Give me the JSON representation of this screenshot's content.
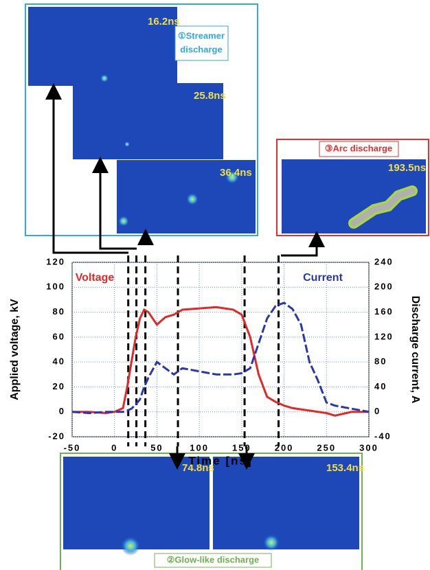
{
  "panels": {
    "streamer": {
      "title": [
        "①Streamer",
        "discharge"
      ],
      "images": [
        "16.2ns",
        "25.8ns",
        "36.4ns"
      ]
    },
    "arc": {
      "title": "③Arc discharge",
      "images": [
        "193.5ns"
      ]
    },
    "glow": {
      "title": "②Glow-like discharge",
      "images": [
        "74.8ns",
        "153.4ns"
      ]
    }
  },
  "chart_data": {
    "type": "line",
    "xlabel": "Time [ns]",
    "ylabel": "Applied voltage, kV",
    "y2label": "Discharge current, A",
    "x": [
      -50,
      -30,
      -10,
      0,
      10,
      15,
      20,
      25,
      30,
      35,
      40,
      50,
      60,
      70,
      80,
      100,
      120,
      140,
      150,
      160,
      170,
      180,
      190,
      200,
      210,
      220,
      230,
      240,
      250,
      260,
      280,
      300
    ],
    "series": [
      {
        "name": "Voltage",
        "color": "#e02828",
        "values": [
          0,
          0,
          -1,
          0,
          3,
          20,
          40,
          60,
          75,
          82,
          80,
          70,
          76,
          78,
          82,
          83,
          84,
          82,
          78,
          60,
          30,
          12,
          8,
          5,
          3,
          2,
          1,
          0,
          -1,
          -3,
          0,
          0
        ]
      },
      {
        "name": "Current",
        "color": "#2838a8",
        "axis": "y2",
        "values": [
          0,
          -2,
          0,
          0,
          0,
          2,
          5,
          12,
          20,
          40,
          55,
          80,
          70,
          60,
          70,
          65,
          60,
          60,
          62,
          70,
          110,
          150,
          170,
          175,
          165,
          140,
          80,
          50,
          15,
          10,
          5,
          0
        ]
      }
    ],
    "xlim": [
      -50,
      300
    ],
    "xticks": [
      -50,
      0,
      50,
      100,
      150,
      200,
      250,
      300
    ],
    "ylim": [
      -20,
      120
    ],
    "yticks": [
      -20,
      0,
      20,
      40,
      60,
      80,
      100,
      120
    ],
    "y2lim": [
      -40,
      240
    ],
    "y2ticks": [
      -40,
      0,
      40,
      80,
      120,
      160,
      200,
      240
    ],
    "grid": true,
    "markers": [
      16.2,
      25.8,
      36.4,
      74.8,
      153.4,
      193.5
    ]
  }
}
